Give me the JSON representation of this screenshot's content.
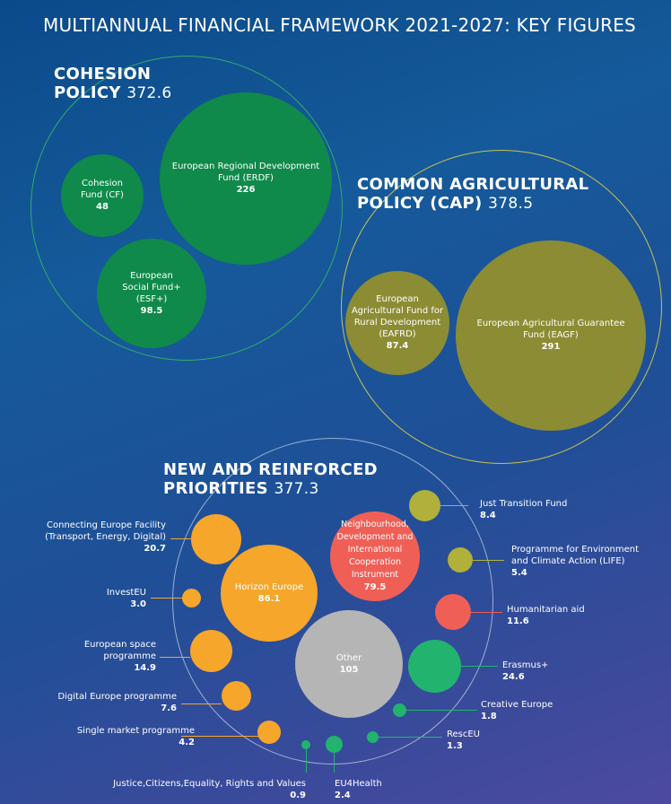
{
  "title": "MULTIANNUAL FINANCIAL FRAMEWORK 2021-2027: KEY FIGURES",
  "cohesion": {
    "label_line1": "COHESION",
    "label_line2": "POLICY",
    "total": "372.6",
    "funds": [
      {
        "name": "Cohesion Fund (CF)",
        "value": "48"
      },
      {
        "name": "European Regional Development Fund (ERDF)",
        "value": "226"
      },
      {
        "name": "European Social Fund+ (ESF+)",
        "value": "98.5"
      }
    ]
  },
  "cap": {
    "label_line1": "COMMON AGRICULTURAL",
    "label_line2": "POLICY (CAP)",
    "total": "378.5",
    "funds": [
      {
        "name": "European Agricultural Fund for Rural Development (EAFRD)",
        "value": "87.4"
      },
      {
        "name": "European Agricultural Guarantee Fund (EAGF)",
        "value": "291"
      }
    ]
  },
  "priorities": {
    "label_line1": "NEW AND REINFORCED",
    "label_line2": "PRIORITIES",
    "total": "377.3",
    "items": [
      {
        "name": "Connecting Europe Facility (Transport, Energy, Digital)",
        "value": "20.7"
      },
      {
        "name": "InvestEU",
        "value": "3.0"
      },
      {
        "name": "European space programme",
        "value": "14.9"
      },
      {
        "name": "Digital Europe programme",
        "value": "7.6"
      },
      {
        "name": "Single market programme",
        "value": "4.2"
      },
      {
        "name": "Justice,Citizens,Equality, Rights and Values",
        "value": "0.9"
      },
      {
        "name": "EU4Health",
        "value": "2.4"
      },
      {
        "name": "RescEU",
        "value": "1.3"
      },
      {
        "name": "Creative Europe",
        "value": "1.8"
      },
      {
        "name": "Erasmus+",
        "value": "24.6"
      },
      {
        "name": "Humanitarian aid",
        "value": "11.6"
      },
      {
        "name": "Programme for Environment and Climate Action (LIFE)",
        "value": "5.4"
      },
      {
        "name": "Just Transition Fund",
        "value": "8.4"
      },
      {
        "name": "Horizon Europe",
        "value": "86.1"
      },
      {
        "name": "Neighbourhood, Development and International Cooperation Instrument",
        "value": "79.5"
      },
      {
        "name": "Other",
        "value": "105"
      }
    ]
  },
  "colors": {
    "cohesion": "#0f8a4a",
    "cap": "#8c8c34",
    "orange": "#f5a62b",
    "red": "#ef5f56",
    "green": "#22b46e",
    "olive": "#b0b03a",
    "other": "#b5b5b5"
  }
}
